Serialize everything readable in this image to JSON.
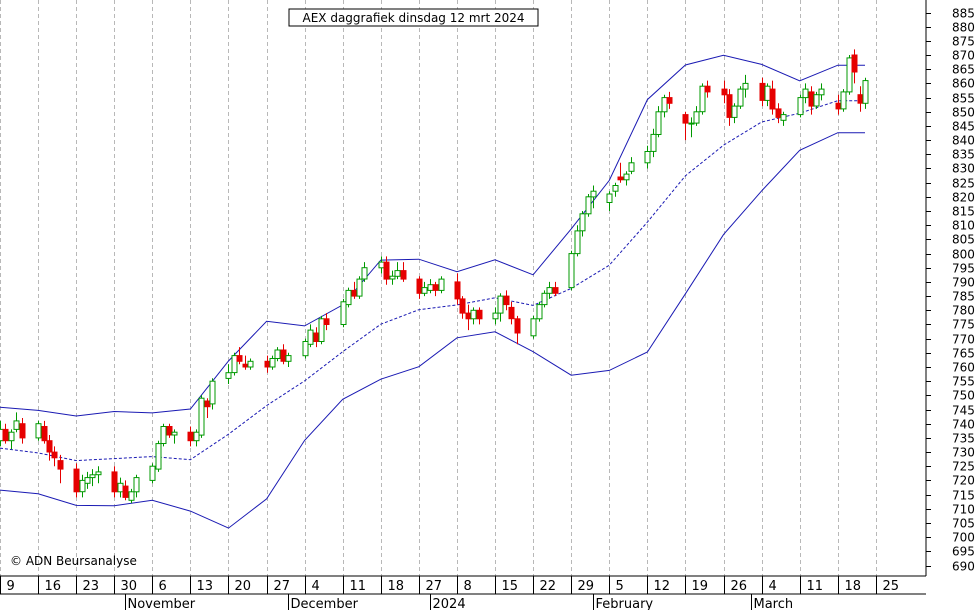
{
  "chart_data": {
    "type": "candlestick",
    "title": "AEX daggrafiek dinsdag 12 mrt 2024",
    "copyright": "© ADN Beursanalyse",
    "ylim": [
      686,
      889
    ],
    "y_ticks": [
      690,
      695,
      700,
      705,
      710,
      715,
      720,
      725,
      730,
      735,
      740,
      745,
      750,
      755,
      760,
      765,
      770,
      775,
      780,
      785,
      790,
      795,
      800,
      805,
      810,
      815,
      820,
      825,
      830,
      835,
      840,
      845,
      850,
      855,
      860,
      865,
      870,
      875,
      880,
      885
    ],
    "x_ticks": [
      {
        "label": "9",
        "day": 0
      },
      {
        "label": "16",
        "day": 7
      },
      {
        "label": "23",
        "day": 14
      },
      {
        "label": "30",
        "day": 21
      },
      {
        "label": "6",
        "day": 28
      },
      {
        "label": "13",
        "day": 35
      },
      {
        "label": "20",
        "day": 42
      },
      {
        "label": "27",
        "day": 49
      },
      {
        "label": "4",
        "day": 56
      },
      {
        "label": "11",
        "day": 63
      },
      {
        "label": "18",
        "day": 70
      },
      {
        "label": "27",
        "day": 77
      },
      {
        "label": "8",
        "day": 84
      },
      {
        "label": "15",
        "day": 91
      },
      {
        "label": "22",
        "day": 98
      },
      {
        "label": "29",
        "day": 105
      },
      {
        "label": "5",
        "day": 112
      },
      {
        "label": "12",
        "day": 119
      },
      {
        "label": "19",
        "day": 126
      },
      {
        "label": "26",
        "day": 133
      },
      {
        "label": "4",
        "day": 140
      },
      {
        "label": "11",
        "day": 147
      },
      {
        "label": "18",
        "day": 154
      },
      {
        "label": "25",
        "day": 161
      }
    ],
    "months": [
      {
        "label": "November",
        "day": 23
      },
      {
        "label": "December",
        "day": 53
      },
      {
        "label": "2024",
        "day": 79
      },
      {
        "label": "February",
        "day": 109
      },
      {
        "label": "March",
        "day": 138
      }
    ],
    "candles": [
      [
        0,
        734,
        741,
        732,
        738
      ],
      [
        1,
        738,
        740,
        733,
        734
      ],
      [
        2,
        734,
        738,
        731,
        737
      ],
      [
        3,
        738,
        744,
        737,
        741
      ],
      [
        4,
        740,
        742,
        733,
        735
      ],
      [
        7,
        735,
        741,
        734,
        740
      ],
      [
        8,
        739,
        741,
        733,
        734
      ],
      [
        9,
        734,
        736,
        727,
        730
      ],
      [
        10,
        730,
        732,
        725,
        728
      ],
      [
        11,
        727,
        729,
        719,
        724
      ],
      [
        14,
        724,
        726,
        714,
        716
      ],
      [
        15,
        716,
        722,
        714,
        720
      ],
      [
        16,
        719,
        723,
        717,
        721
      ],
      [
        17,
        721,
        724,
        718,
        722
      ],
      [
        18,
        722,
        725,
        719,
        723
      ],
      [
        21,
        723,
        725,
        714,
        716
      ],
      [
        22,
        716,
        721,
        714,
        719
      ],
      [
        23,
        718,
        720,
        713,
        714
      ],
      [
        24,
        713,
        717,
        712,
        716
      ],
      [
        25,
        716,
        722,
        714,
        721
      ],
      [
        28,
        720,
        726,
        719,
        725
      ],
      [
        29,
        724,
        734,
        723,
        733
      ],
      [
        30,
        733,
        740,
        732,
        739
      ],
      [
        31,
        739,
        740,
        735,
        736
      ],
      [
        32,
        736,
        738,
        733,
        737
      ],
      [
        35,
        737,
        739,
        732,
        734
      ],
      [
        36,
        734,
        738,
        732,
        737
      ],
      [
        37,
        736,
        750,
        735,
        749
      ],
      [
        38,
        748,
        749,
        742,
        746
      ],
      [
        39,
        747,
        756,
        745,
        755
      ],
      [
        42,
        756,
        761,
        754,
        758
      ],
      [
        43,
        758,
        765,
        757,
        764
      ],
      [
        44,
        764,
        767,
        761,
        762
      ],
      [
        45,
        761,
        764,
        759,
        760
      ],
      [
        46,
        760,
        763,
        759,
        762
      ],
      [
        49,
        762,
        764,
        758,
        760
      ],
      [
        50,
        760,
        764,
        759,
        763
      ],
      [
        51,
        763,
        767,
        762,
        766
      ],
      [
        52,
        766,
        768,
        761,
        762
      ],
      [
        53,
        762,
        765,
        760,
        764
      ],
      [
        56,
        764,
        770,
        763,
        769
      ],
      [
        57,
        768,
        775,
        767,
        773
      ],
      [
        58,
        772,
        774,
        767,
        769
      ],
      [
        59,
        769,
        778,
        768,
        777
      ],
      [
        60,
        777,
        779,
        773,
        775
      ],
      [
        63,
        775,
        784,
        774,
        783
      ],
      [
        64,
        782,
        788,
        781,
        787
      ],
      [
        65,
        787,
        790,
        784,
        785
      ],
      [
        66,
        785,
        792,
        784,
        791
      ],
      [
        67,
        791,
        797,
        790,
        795
      ],
      [
        70,
        795,
        799,
        793,
        797
      ],
      [
        71,
        797,
        799,
        789,
        791
      ],
      [
        72,
        791,
        794,
        789,
        792
      ],
      [
        73,
        792,
        797,
        791,
        794
      ],
      [
        74,
        794,
        797,
        790,
        791
      ],
      [
        77,
        791,
        792,
        784,
        786
      ],
      [
        78,
        786,
        790,
        785,
        788
      ],
      [
        79,
        787,
        791,
        786,
        789
      ],
      [
        80,
        789,
        790,
        785,
        787
      ],
      [
        81,
        787,
        792,
        786,
        791
      ],
      [
        84,
        790,
        793,
        782,
        784
      ],
      [
        85,
        784,
        785,
        777,
        779
      ],
      [
        86,
        779,
        782,
        773,
        777
      ],
      [
        87,
        777,
        781,
        775,
        780
      ],
      [
        88,
        780,
        781,
        775,
        777
      ],
      [
        91,
        777,
        781,
        775,
        779
      ],
      [
        92,
        779,
        786,
        776,
        785
      ],
      [
        93,
        785,
        787,
        780,
        782
      ],
      [
        94,
        781,
        783,
        775,
        777
      ],
      [
        95,
        777,
        778,
        768,
        772
      ],
      [
        98,
        771,
        778,
        770,
        777
      ],
      [
        99,
        777,
        783,
        776,
        782
      ],
      [
        100,
        782,
        787,
        781,
        786
      ],
      [
        101,
        786,
        790,
        784,
        788
      ],
      [
        102,
        788,
        790,
        785,
        786
      ],
      [
        105,
        788,
        801,
        787,
        800
      ],
      [
        106,
        800,
        810,
        799,
        808
      ],
      [
        107,
        808,
        815,
        806,
        814
      ],
      [
        108,
        814,
        821,
        813,
        820
      ],
      [
        109,
        820,
        824,
        816,
        822
      ],
      [
        112,
        818,
        822,
        815,
        821
      ],
      [
        113,
        822,
        825,
        820,
        824
      ],
      [
        114,
        827,
        832,
        825,
        826
      ],
      [
        115,
        826,
        829,
        824,
        828
      ],
      [
        116,
        829,
        834,
        828,
        832
      ],
      [
        119,
        832,
        838,
        830,
        836
      ],
      [
        120,
        836,
        844,
        834,
        842
      ],
      [
        121,
        842,
        852,
        841,
        850
      ],
      [
        122,
        850,
        856,
        848,
        855
      ],
      [
        123,
        855,
        857,
        851,
        853
      ],
      [
        126,
        849,
        850,
        840,
        846
      ],
      [
        127,
        846,
        848,
        841,
        846
      ],
      [
        128,
        846,
        852,
        845,
        850
      ],
      [
        129,
        850,
        860,
        849,
        859
      ],
      [
        130,
        859,
        861,
        855,
        857
      ],
      [
        133,
        858,
        861,
        853,
        856
      ],
      [
        134,
        856,
        858,
        845,
        848
      ],
      [
        135,
        848,
        853,
        846,
        852
      ],
      [
        136,
        852,
        859,
        851,
        858
      ],
      [
        137,
        858,
        863,
        855,
        860
      ],
      [
        140,
        860,
        862,
        852,
        854
      ],
      [
        141,
        854,
        860,
        852,
        859
      ],
      [
        142,
        858,
        861,
        849,
        851
      ],
      [
        143,
        851,
        853,
        846,
        848
      ],
      [
        144,
        847,
        850,
        845,
        849
      ],
      [
        147,
        849,
        856,
        848,
        855
      ],
      [
        148,
        855,
        860,
        853,
        858
      ],
      [
        149,
        857,
        859,
        849,
        852
      ],
      [
        150,
        852,
        857,
        851,
        856
      ],
      [
        151,
        856,
        860,
        854,
        858
      ],
      [
        154,
        853,
        856,
        849,
        851
      ],
      [
        155,
        851,
        858,
        850,
        857
      ],
      [
        156,
        857,
        870,
        856,
        869
      ],
      [
        157,
        870,
        872,
        860,
        864
      ],
      [
        158,
        856,
        859,
        850,
        853
      ],
      [
        159,
        853,
        862,
        851,
        861
      ]
    ],
    "bands": {
      "days": [
        0,
        7,
        14,
        21,
        28,
        35,
        42,
        49,
        56,
        63,
        70,
        77,
        84,
        91,
        98,
        105,
        112,
        119,
        126,
        133,
        140,
        147,
        154,
        159
      ],
      "upper": [
        745.8,
        744.7,
        742.7,
        744.3,
        743.8,
        745.2,
        762.1,
        776.1,
        774.5,
        781.9,
        797.7,
        798.0,
        793.6,
        797.8,
        792.5,
        808.7,
        825.8,
        854.3,
        866.5,
        869.9,
        866.7,
        860.9,
        866.4,
        866.4
      ],
      "middle": [
        731.4,
        729.7,
        727.0,
        727.7,
        728.4,
        727.3,
        736.3,
        746.4,
        755.1,
        765.4,
        775.1,
        780.2,
        781.9,
        784.4,
        781.7,
        787.7,
        795.9,
        811.1,
        827.4,
        838.2,
        846.4,
        849.5,
        853.9,
        853.9
      ],
      "lower": [
        716.6,
        715.3,
        711.2,
        711.1,
        713.0,
        709.2,
        703.2,
        713.5,
        734.1,
        748.6,
        755.7,
        760.1,
        770.3,
        772.4,
        765.4,
        757.1,
        758.8,
        765.3,
        785.8,
        806.7,
        822.1,
        836.4,
        842.6,
        842.6
      ]
    },
    "colors": {
      "up": "#009900",
      "down": "#e60000",
      "band": "#1a1ab3",
      "middle": "#1a1ab3",
      "grid": "#b8b8b8",
      "axis": "#000000"
    },
    "grid": true
  }
}
